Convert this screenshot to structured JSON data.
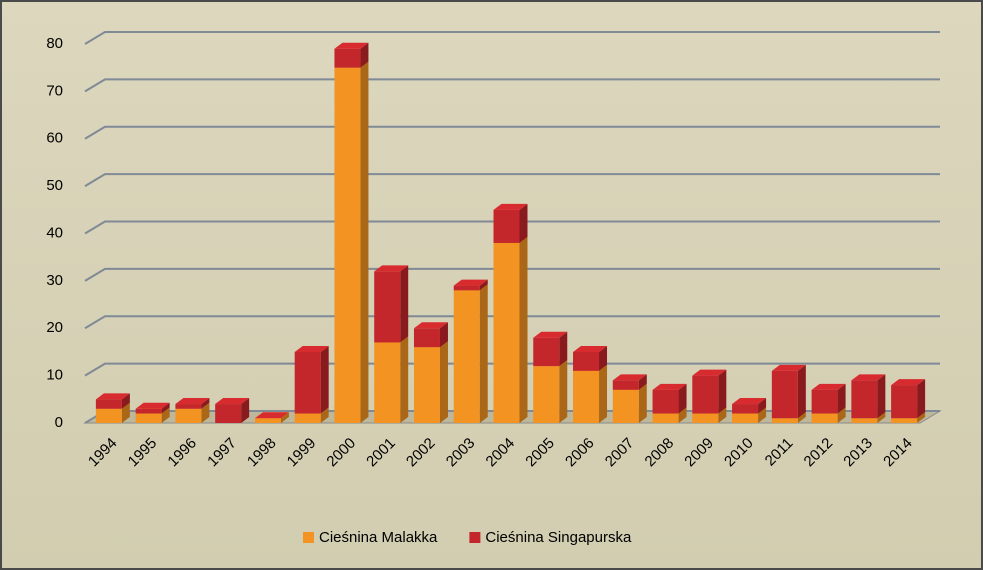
{
  "chart_data": {
    "type": "bar",
    "stacked": true,
    "categories": [
      "1994",
      "1995",
      "1996",
      "1997",
      "1998",
      "1999",
      "2000",
      "2001",
      "2002",
      "2003",
      "2004",
      "2005",
      "2006",
      "2007",
      "2008",
      "2009",
      "2010",
      "2011",
      "2012",
      "2013",
      "2014"
    ],
    "series": [
      {
        "name": "Cieśnina Malakka",
        "color": "#f39321",
        "values": [
          3,
          2,
          3,
          0,
          1,
          2,
          75,
          17,
          16,
          28,
          38,
          12,
          11,
          7,
          2,
          2,
          2,
          1,
          2,
          1,
          1
        ]
      },
      {
        "name": "Cieśnina Singapurska",
        "color": "#c3272b",
        "values": [
          2,
          1,
          1,
          4,
          0,
          13,
          4,
          15,
          4,
          1,
          7,
          6,
          4,
          2,
          5,
          8,
          2,
          10,
          5,
          8,
          7
        ]
      }
    ],
    "ylim": [
      0,
      80
    ],
    "yticks": [
      0,
      10,
      20,
      30,
      40,
      50,
      60,
      70,
      80
    ],
    "grid": true,
    "legend": "bottom"
  }
}
